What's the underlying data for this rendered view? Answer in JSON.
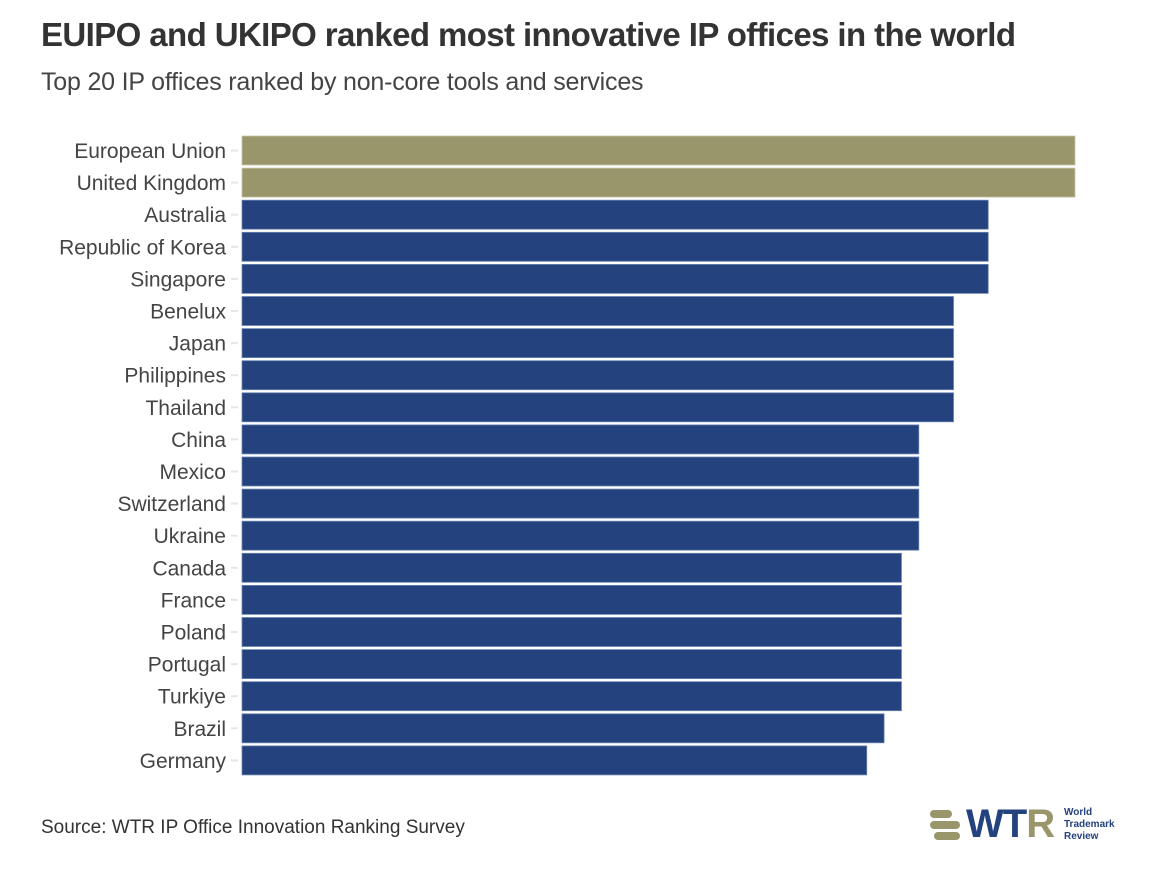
{
  "header": {
    "title": "EUIPO and UKIPO ranked most innovative IP offices in the world",
    "subtitle": "Top 20 IP offices ranked by non-core tools and services"
  },
  "footer": {
    "source": "Source: WTR IP Office Innovation Ranking Survey",
    "logo": {
      "mark": "WT",
      "mark_accent": "R",
      "line1": "World",
      "line2": "Trademark",
      "line3": "Review"
    }
  },
  "colors": {
    "highlight": "#9a966c",
    "default": "#23427e",
    "label": "#444444",
    "tick": "#e6e6e6"
  },
  "chart_data": {
    "type": "bar",
    "orientation": "horizontal",
    "title": "EUIPO and UKIPO ranked most innovative IP offices in the world",
    "subtitle": "Top 20 IP offices ranked by non-core tools and services",
    "xlabel": "",
    "ylabel": "",
    "note": "No value axis shown; values are relative scores estimated from bar lengths",
    "categories": [
      "European Union",
      "United Kingdom",
      "Australia",
      "Republic of Korea",
      "Singapore",
      "Benelux",
      "Japan",
      "Philippines",
      "Thailand",
      "China",
      "Mexico",
      "Switzerland",
      "Ukraine",
      "Canada",
      "France",
      "Poland",
      "Portugal",
      "Turkiye",
      "Brazil",
      "Germany"
    ],
    "values": [
      48,
      48,
      43,
      43,
      43,
      41,
      41,
      41,
      41,
      39,
      39,
      39,
      39,
      38,
      38,
      38,
      38,
      38,
      37,
      36
    ],
    "highlighted": [
      "European Union",
      "United Kingdom"
    ],
    "xlim": [
      0,
      48
    ],
    "grid": false,
    "legend": "none",
    "source": "Source: WTR IP Office Innovation Ranking Survey"
  }
}
